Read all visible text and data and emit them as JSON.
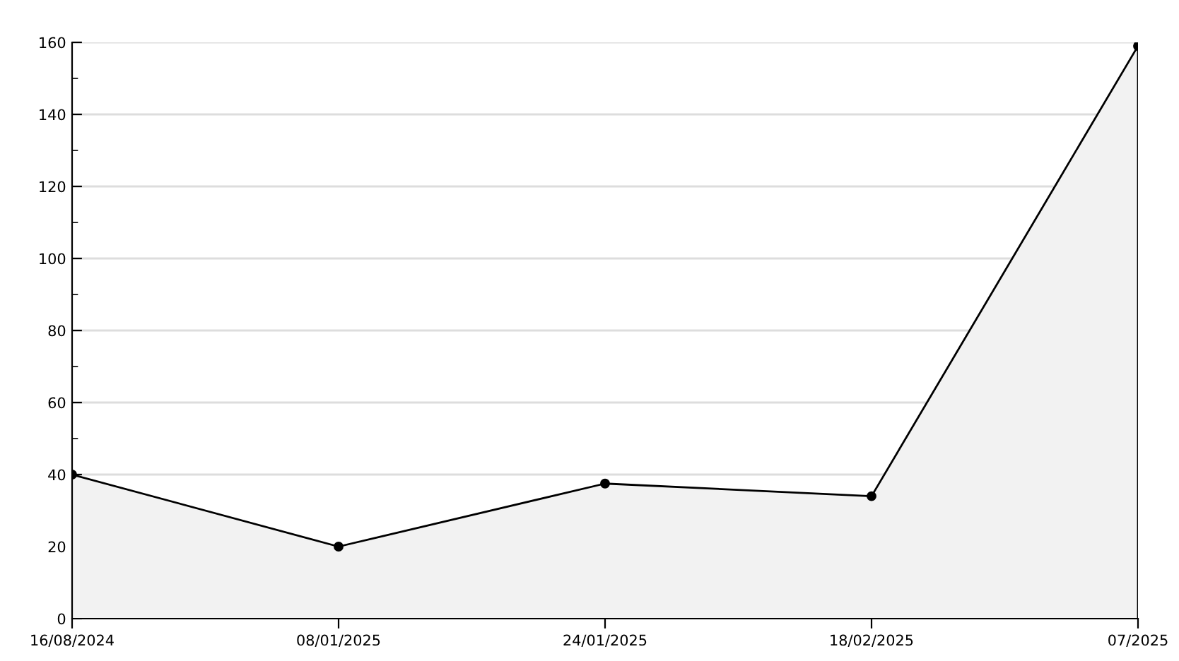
{
  "chart_data": {
    "type": "area",
    "categories": [
      "16/08/2024",
      "08/01/2025",
      "24/01/2025",
      "18/02/2025",
      "07/2025"
    ],
    "series": [
      {
        "color": "#f2f2f2",
        "values": [
          40,
          20,
          37.5,
          34,
          159
        ]
      }
    ],
    "ylim": [
      0,
      160
    ],
    "yticks": [
      0,
      20,
      40,
      60,
      80,
      100,
      120,
      140,
      160
    ],
    "grid": "y",
    "marker": "circle",
    "line_style": "solid",
    "legend": false
  }
}
